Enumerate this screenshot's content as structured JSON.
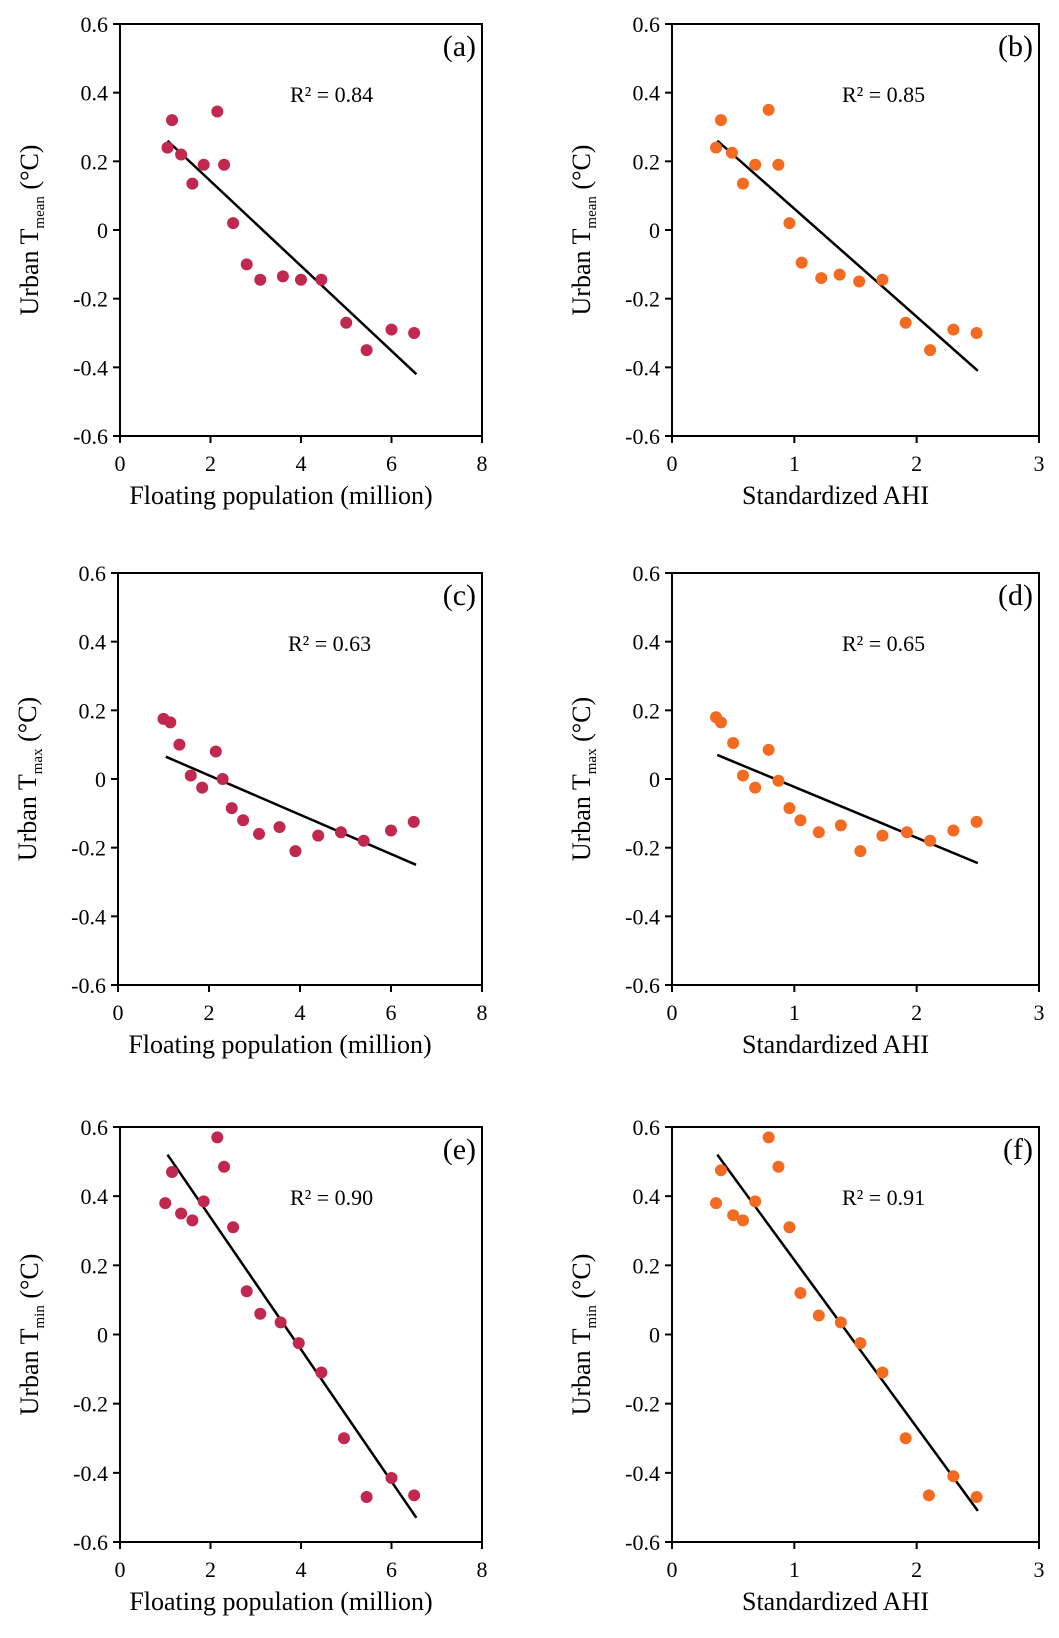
{
  "colors": {
    "series_a": "#c0284f",
    "series_b": "#f26b21",
    "fit_line": "#000000",
    "axis": "#000000"
  },
  "chart_data": [
    {
      "type": "scatter",
      "panel": "(a)",
      "annotation": "R² = 0.84",
      "xlabel": "Floating population (million)",
      "ylabel": {
        "main": "Urban T",
        "sub": "mean",
        "unit": " (°C)"
      },
      "xlim": [
        0,
        8
      ],
      "ylim": [
        -0.6,
        0.6
      ],
      "xticks": [
        "0",
        "2",
        "4",
        "6",
        "8"
      ],
      "yticks": [
        "0.6",
        "0.4",
        "0.2",
        "0",
        "-0.2",
        "-0.4",
        "-0.6"
      ],
      "grid": false,
      "marker_color": "#c0284f",
      "points": [
        [
          1.05,
          0.24
        ],
        [
          1.15,
          0.32
        ],
        [
          1.35,
          0.22
        ],
        [
          1.6,
          0.135
        ],
        [
          1.85,
          0.19
        ],
        [
          2.15,
          0.345
        ],
        [
          2.3,
          0.19
        ],
        [
          2.5,
          0.02
        ],
        [
          2.8,
          -0.1
        ],
        [
          3.1,
          -0.145
        ],
        [
          3.6,
          -0.135
        ],
        [
          4.0,
          -0.145
        ],
        [
          4.45,
          -0.145
        ],
        [
          5.0,
          -0.27
        ],
        [
          5.45,
          -0.35
        ],
        [
          6.0,
          -0.29
        ],
        [
          6.5,
          -0.3
        ]
      ],
      "fit": [
        [
          1.05,
          0.26
        ],
        [
          6.55,
          -0.42
        ]
      ]
    },
    {
      "type": "scatter",
      "panel": "(b)",
      "annotation": "R² = 0.85",
      "xlabel": "Standardized AHI",
      "ylabel": {
        "main": "Urban T",
        "sub": "mean",
        "unit": " (°C)"
      },
      "xlim": [
        0,
        3
      ],
      "ylim": [
        -0.6,
        0.6
      ],
      "xticks": [
        "0",
        "1",
        "2",
        "3"
      ],
      "yticks": [
        "0.6",
        "0.4",
        "0.2",
        "0",
        "-0.2",
        "-0.4",
        "-0.6"
      ],
      "grid": false,
      "marker_color": "#f26b21",
      "points": [
        [
          0.36,
          0.24
        ],
        [
          0.4,
          0.32
        ],
        [
          0.49,
          0.225
        ],
        [
          0.58,
          0.135
        ],
        [
          0.68,
          0.19
        ],
        [
          0.79,
          0.35
        ],
        [
          0.87,
          0.19
        ],
        [
          0.96,
          0.02
        ],
        [
          1.06,
          -0.095
        ],
        [
          1.22,
          -0.14
        ],
        [
          1.37,
          -0.13
        ],
        [
          1.53,
          -0.15
        ],
        [
          1.72,
          -0.145
        ],
        [
          1.91,
          -0.27
        ],
        [
          2.11,
          -0.35
        ],
        [
          2.3,
          -0.29
        ],
        [
          2.49,
          -0.3
        ]
      ],
      "fit": [
        [
          0.37,
          0.26
        ],
        [
          2.5,
          -0.41
        ]
      ]
    },
    {
      "type": "scatter",
      "panel": "(c)",
      "annotation": "R² = 0.63",
      "xlabel": "Floating population (million)",
      "ylabel": {
        "main": "Urban T",
        "sub": "max",
        "unit": " (°C)"
      },
      "xlim": [
        0,
        8
      ],
      "ylim": [
        -0.6,
        0.6
      ],
      "xticks": [
        "0",
        "2",
        "4",
        "6",
        "8"
      ],
      "yticks": [
        "0.6",
        "0.4",
        "0.2",
        "0",
        "-0.2",
        "-0.4",
        "-0.6"
      ],
      "grid": false,
      "marker_color": "#c0284f",
      "points": [
        [
          1.0,
          0.175
        ],
        [
          1.15,
          0.165
        ],
        [
          1.35,
          0.1
        ],
        [
          1.6,
          0.01
        ],
        [
          1.85,
          -0.025
        ],
        [
          2.15,
          0.08
        ],
        [
          2.3,
          0.0
        ],
        [
          2.5,
          -0.085
        ],
        [
          2.75,
          -0.12
        ],
        [
          3.1,
          -0.16
        ],
        [
          3.55,
          -0.14
        ],
        [
          3.9,
          -0.21
        ],
        [
          4.4,
          -0.165
        ],
        [
          4.9,
          -0.155
        ],
        [
          5.4,
          -0.18
        ],
        [
          6.0,
          -0.15
        ],
        [
          6.5,
          -0.125
        ]
      ],
      "fit": [
        [
          1.05,
          0.065
        ],
        [
          6.55,
          -0.25
        ]
      ]
    },
    {
      "type": "scatter",
      "panel": "(d)",
      "annotation": "R² = 0.65",
      "xlabel": "Standardized AHI",
      "ylabel": {
        "main": "Urban T",
        "sub": "max",
        "unit": " (°C)"
      },
      "xlim": [
        0,
        3
      ],
      "ylim": [
        -0.6,
        0.6
      ],
      "xticks": [
        "0",
        "1",
        "2",
        "3"
      ],
      "yticks": [
        "0.6",
        "0.4",
        "0.2",
        "0",
        "-0.2",
        "-0.4",
        "-0.6"
      ],
      "grid": false,
      "marker_color": "#f26b21",
      "points": [
        [
          0.36,
          0.18
        ],
        [
          0.4,
          0.165
        ],
        [
          0.5,
          0.105
        ],
        [
          0.58,
          0.01
        ],
        [
          0.68,
          -0.025
        ],
        [
          0.79,
          0.085
        ],
        [
          0.87,
          -0.005
        ],
        [
          0.96,
          -0.085
        ],
        [
          1.05,
          -0.12
        ],
        [
          1.2,
          -0.155
        ],
        [
          1.38,
          -0.135
        ],
        [
          1.54,
          -0.21
        ],
        [
          1.72,
          -0.165
        ],
        [
          1.92,
          -0.155
        ],
        [
          2.11,
          -0.18
        ],
        [
          2.3,
          -0.15
        ],
        [
          2.49,
          -0.125
        ]
      ],
      "fit": [
        [
          0.37,
          0.07
        ],
        [
          2.5,
          -0.245
        ]
      ]
    },
    {
      "type": "scatter",
      "panel": "(e)",
      "annotation": "R² = 0.90",
      "xlabel": "Floating population (million)",
      "ylabel": {
        "main": "Urban T",
        "sub": "min",
        "unit": " (°C)"
      },
      "xlim": [
        0,
        8
      ],
      "ylim": [
        -0.6,
        0.6
      ],
      "xticks": [
        "0",
        "2",
        "4",
        "6",
        "8"
      ],
      "yticks": [
        "0.6",
        "0.4",
        "0.2",
        "0",
        "-0.2",
        "-0.4",
        "-0.6"
      ],
      "grid": false,
      "marker_color": "#c0284f",
      "points": [
        [
          1.0,
          0.38
        ],
        [
          1.15,
          0.47
        ],
        [
          1.35,
          0.35
        ],
        [
          1.6,
          0.33
        ],
        [
          1.85,
          0.385
        ],
        [
          2.15,
          0.57
        ],
        [
          2.3,
          0.485
        ],
        [
          2.5,
          0.31
        ],
        [
          2.8,
          0.125
        ],
        [
          3.1,
          0.06
        ],
        [
          3.55,
          0.035
        ],
        [
          3.95,
          -0.025
        ],
        [
          4.45,
          -0.11
        ],
        [
          4.95,
          -0.3
        ],
        [
          5.45,
          -0.47
        ],
        [
          6.0,
          -0.415
        ],
        [
          6.5,
          -0.465
        ]
      ],
      "fit": [
        [
          1.05,
          0.52
        ],
        [
          6.55,
          -0.53
        ]
      ]
    },
    {
      "type": "scatter",
      "panel": "(f)",
      "annotation": "R² = 0.91",
      "xlabel": "Standardized AHI",
      "ylabel": {
        "main": "Urban T",
        "sub": "min",
        "unit": " (°C)"
      },
      "xlim": [
        0,
        3
      ],
      "ylim": [
        -0.6,
        0.6
      ],
      "xticks": [
        "0",
        "1",
        "2",
        "3"
      ],
      "yticks": [
        "0.6",
        "0.4",
        "0.2",
        "0",
        "-0.2",
        "-0.4",
        "-0.6"
      ],
      "grid": false,
      "marker_color": "#f26b21",
      "points": [
        [
          0.36,
          0.38
        ],
        [
          0.4,
          0.475
        ],
        [
          0.5,
          0.345
        ],
        [
          0.58,
          0.33
        ],
        [
          0.68,
          0.385
        ],
        [
          0.79,
          0.57
        ],
        [
          0.87,
          0.485
        ],
        [
          0.96,
          0.31
        ],
        [
          1.05,
          0.12
        ],
        [
          1.2,
          0.055
        ],
        [
          1.38,
          0.035
        ],
        [
          1.54,
          -0.025
        ],
        [
          1.72,
          -0.11
        ],
        [
          1.91,
          -0.3
        ],
        [
          2.1,
          -0.465
        ],
        [
          2.3,
          -0.41
        ],
        [
          2.49,
          -0.47
        ]
      ],
      "fit": [
        [
          0.37,
          0.52
        ],
        [
          2.5,
          -0.51
        ]
      ]
    }
  ]
}
